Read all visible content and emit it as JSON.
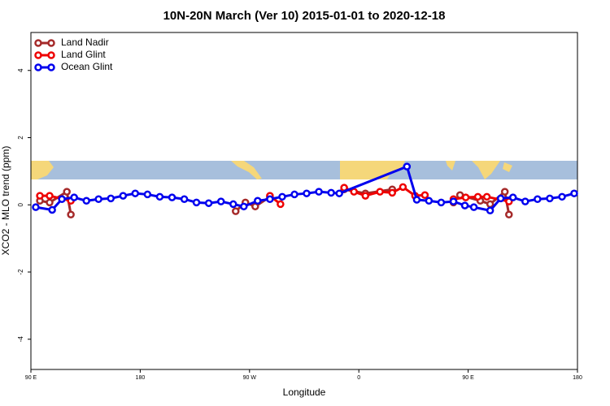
{
  "chart_data": {
    "type": "line",
    "title": "10N-20N March (Ver 10)   2015-01-01 to 2020-12-18",
    "xlabel": "Longitude",
    "ylabel": "XCO2 - MLO trend (ppm)",
    "xlim": [
      90,
      540
    ],
    "ylim": [
      -4.9,
      5.13
    ],
    "xticks": [
      {
        "value": 90,
        "label": "90 E"
      },
      180,
      {
        "value": 270,
        "label": "90 W"
      },
      {
        "value": 360,
        "label": "0"
      },
      {
        "value": 450,
        "label": "90 E"
      },
      {
        "value": 540,
        "label": "180"
      }
    ],
    "yticks": [
      -4,
      -2,
      0,
      2,
      4
    ],
    "legend": "upper left",
    "series": [
      {
        "name": "Land Nadir",
        "color": "#a52a2a",
        "x": [
          97.4,
          105.4,
          119.6,
          122.9,
          null,
          258.6,
          266.6,
          274.7,
          286.8,
          null,
          347.9,
          365.4,
          387.5,
          null,
          437.9,
          443.3,
          460,
          468.1,
          480.2,
          483.6
        ],
        "values": [
          0.12,
          0.07,
          0.39,
          -0.29,
          null,
          -0.19,
          0.07,
          -0.05,
          0.24,
          null,
          0.46,
          0.34,
          0.46,
          null,
          0.07,
          0.29,
          0.12,
          0.02,
          0.39,
          -0.29
        ]
      },
      {
        "name": "Land Glint",
        "color": "#ee0000",
        "x": [
          97.4,
          105.4,
          122.9,
          null,
          286.8,
          295.5,
          null,
          347.9,
          356,
          365.4,
          377.4,
          387.5,
          396.3,
          406.3,
          414.4,
          null,
          437.9,
          448,
          458,
          465.4,
          483.6
        ],
        "values": [
          0.27,
          0.27,
          0.12,
          null,
          0.27,
          0.02,
          null,
          0.51,
          0.39,
          0.27,
          0.39,
          0.36,
          0.53,
          0.27,
          0.29,
          null,
          0.17,
          0.22,
          0.24,
          0.24,
          0.1
        ]
      },
      {
        "name": "Ocean Glint",
        "color": "#0000ee",
        "x": [
          94,
          107.5,
          115.5,
          125.6,
          135.7,
          145.7,
          155.8,
          165.9,
          175.9,
          186,
          196.1,
          206.2,
          216.3,
          226.3,
          236.4,
          246.5,
          256.6,
          265.3,
          276.7,
          286.8,
          296.9,
          307,
          317,
          327.1,
          337.2,
          343.9,
          399.6,
          407.7,
          417.7,
          427.8,
          437.9,
          447.3,
          454.7,
          468.1,
          476.8,
          486.9,
          497,
          507.1,
          517.2,
          527.3,
          537.3
        ],
        "values": [
          -0.07,
          -0.15,
          0.17,
          0.22,
          0.12,
          0.17,
          0.19,
          0.27,
          0.34,
          0.31,
          0.24,
          0.22,
          0.17,
          0.07,
          0.05,
          0.1,
          0.02,
          -0.05,
          0.12,
          0.17,
          0.24,
          0.31,
          0.34,
          0.39,
          0.36,
          0.34,
          1.14,
          0.15,
          0.12,
          0.07,
          0.1,
          -0.02,
          -0.07,
          -0.17,
          0.19,
          0.22,
          0.1,
          0.17,
          0.19,
          0.24,
          0.34
        ]
      }
    ]
  }
}
